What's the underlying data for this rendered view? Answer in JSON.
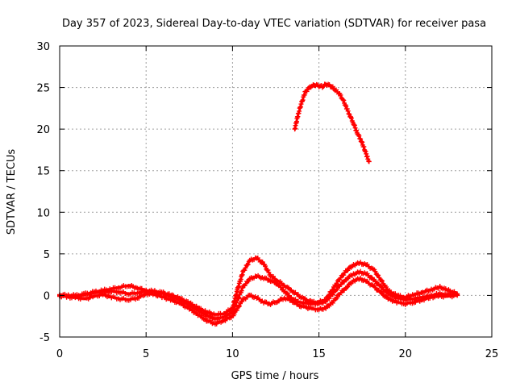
{
  "chart_data": {
    "type": "scatter",
    "title": "Day 357 of 2023, Sidereal Day-to-day VTEC variation (SDTVAR) for receiver pasa",
    "xlabel": "GPS time / hours",
    "ylabel": "SDTVAR / TECUs",
    "xlim": [
      0,
      25
    ],
    "ylim": [
      -5,
      30
    ],
    "xticks": [
      0,
      5,
      10,
      15,
      20,
      25
    ],
    "yticks": [
      -5,
      0,
      5,
      10,
      15,
      20,
      25,
      30
    ],
    "grid": true,
    "marker": "plus",
    "series": [
      {
        "name": "track-low",
        "color": "#ff0000",
        "x": [
          0.0,
          0.5,
          1.0,
          1.5,
          2.0,
          2.5,
          3.0,
          3.5,
          4.0,
          4.5,
          5.0,
          5.5,
          6.0,
          6.5,
          7.0,
          7.5,
          8.0,
          8.5,
          9.0,
          9.5,
          10.0,
          10.3,
          10.6,
          11.0,
          11.4,
          11.8,
          12.2,
          12.6,
          13.0,
          13.4,
          13.8,
          14.2,
          14.6,
          15.0,
          15.4,
          15.8,
          16.2,
          16.6,
          17.0,
          17.4,
          17.8,
          18.2,
          18.6,
          19.0,
          19.5,
          20.0,
          20.5,
          21.0,
          21.5,
          22.0,
          22.5,
          23.0
        ],
        "y": [
          0.0,
          -0.2,
          -0.3,
          -0.4,
          -0.1,
          0.1,
          -0.2,
          -0.4,
          -0.5,
          -0.3,
          0.2,
          0.1,
          -0.2,
          -0.6,
          -1.0,
          -1.6,
          -2.3,
          -3.0,
          -3.4,
          -3.0,
          -2.5,
          -1.5,
          -0.5,
          0.0,
          -0.3,
          -0.8,
          -1.0,
          -0.7,
          -0.3,
          -0.6,
          -1.2,
          -1.4,
          -1.6,
          -1.7,
          -1.5,
          -0.8,
          0.2,
          1.0,
          1.8,
          2.0,
          1.6,
          1.0,
          0.3,
          -0.4,
          -0.8,
          -1.0,
          -0.8,
          -0.5,
          -0.2,
          -0.1,
          -0.1,
          0.0
        ]
      },
      {
        "name": "track-mid",
        "color": "#ff0000",
        "x": [
          0.0,
          0.5,
          1.0,
          1.5,
          2.0,
          2.5,
          3.0,
          3.5,
          4.0,
          4.5,
          5.0,
          5.5,
          6.0,
          6.5,
          7.0,
          7.5,
          8.0,
          8.5,
          9.0,
          9.5,
          10.0,
          10.3,
          10.6,
          11.0,
          11.4,
          11.8,
          12.2,
          12.6,
          13.0,
          13.4,
          13.8,
          14.2,
          14.6,
          15.0,
          15.4,
          15.8,
          16.2,
          16.6,
          17.0,
          17.4,
          17.8,
          18.2,
          18.6,
          19.0,
          19.5,
          20.0,
          20.5,
          21.0,
          21.5,
          22.0,
          22.5,
          23.0
        ],
        "y": [
          0.1,
          0.0,
          -0.1,
          0.1,
          0.3,
          0.4,
          0.5,
          0.4,
          0.2,
          0.3,
          0.5,
          0.4,
          0.2,
          -0.2,
          -0.6,
          -1.2,
          -1.8,
          -2.4,
          -2.8,
          -2.6,
          -2.0,
          -0.5,
          1.0,
          2.0,
          2.3,
          2.1,
          1.8,
          1.4,
          0.5,
          -0.3,
          -0.8,
          -0.9,
          -1.0,
          -1.0,
          -0.7,
          0.2,
          1.2,
          2.0,
          2.6,
          2.8,
          2.5,
          1.8,
          1.0,
          0.2,
          -0.3,
          -0.5,
          -0.4,
          -0.2,
          0.0,
          0.2,
          0.1,
          0.1
        ]
      },
      {
        "name": "track-high",
        "color": "#ff0000",
        "x": [
          0.0,
          0.5,
          1.0,
          1.5,
          2.0,
          2.5,
          3.0,
          3.5,
          4.0,
          4.5,
          5.0,
          5.5,
          6.0,
          6.5,
          7.0,
          7.5,
          8.0,
          8.5,
          9.0,
          9.5,
          10.0,
          10.3,
          10.6,
          11.0,
          11.4,
          11.8,
          12.2,
          12.6,
          13.0,
          13.4,
          13.8,
          14.2,
          14.6,
          15.0,
          15.4,
          15.8,
          16.2,
          16.6,
          17.0,
          17.4,
          17.8,
          18.2,
          18.6,
          19.0,
          19.5,
          20.0,
          20.5,
          21.0,
          21.5,
          22.0,
          22.5,
          23.0
        ],
        "y": [
          -0.1,
          0.0,
          0.0,
          0.2,
          0.4,
          0.6,
          0.8,
          1.0,
          1.2,
          0.9,
          0.6,
          0.5,
          0.3,
          0.0,
          -0.4,
          -0.9,
          -1.5,
          -2.0,
          -2.3,
          -2.2,
          -1.5,
          0.8,
          2.8,
          4.2,
          4.5,
          3.8,
          2.4,
          1.8,
          1.2,
          0.6,
          0.0,
          -0.5,
          -0.8,
          -0.8,
          -0.5,
          0.8,
          2.0,
          3.0,
          3.7,
          3.9,
          3.6,
          3.0,
          1.8,
          0.6,
          0.0,
          -0.2,
          0.1,
          0.4,
          0.7,
          1.0,
          0.6,
          0.2
        ]
      },
      {
        "name": "arc",
        "color": "#ff0000",
        "x": [
          13.6,
          13.8,
          14.0,
          14.2,
          14.4,
          14.6,
          14.8,
          15.0,
          15.2,
          15.4,
          15.6,
          15.8,
          16.0,
          16.2,
          16.4,
          16.6,
          16.8,
          17.0,
          17.2,
          17.4,
          17.6,
          17.8,
          17.9
        ],
        "y": [
          20.0,
          21.8,
          23.2,
          24.4,
          24.9,
          25.2,
          25.3,
          25.2,
          25.1,
          25.4,
          25.3,
          25.0,
          24.6,
          24.2,
          23.5,
          22.5,
          21.6,
          20.7,
          19.6,
          18.8,
          17.8,
          16.6,
          16.1
        ]
      }
    ]
  }
}
